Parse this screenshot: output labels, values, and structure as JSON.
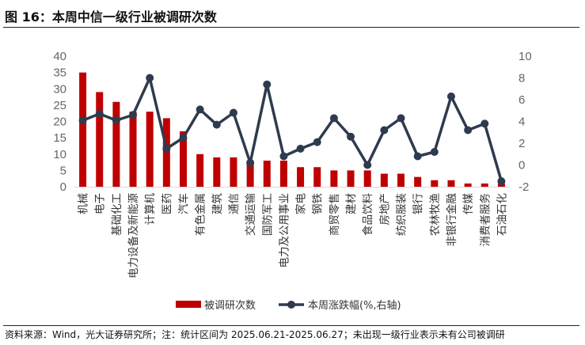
{
  "title": "图 16：本周中信一级行业被调研次数",
  "source": "资料来源：Wind，光大证券研究所；注：统计区间为 2025.06.21-2025.06.27；未出现一级行业表示未有公司被调研",
  "chart_data": {
    "type": "bar+line",
    "categories": [
      "机械",
      "电子",
      "基础化工",
      "电力设备及新能源",
      "计算机",
      "医药",
      "汽车",
      "有色金属",
      "建筑",
      "通信",
      "交通运输",
      "国防军工",
      "电力及公用事业",
      "家电",
      "钢铁",
      "商贸零售",
      "建材",
      "食品饮料",
      "房地产",
      "纺织服装",
      "银行",
      "农林牧渔",
      "非银行金融",
      "传媒",
      "消费者服务",
      "石油石化"
    ],
    "series": [
      {
        "name": "被调研次数",
        "type": "bar",
        "axis": "left",
        "color": "#C00000",
        "values": [
          35,
          29,
          26,
          23,
          23,
          21,
          17,
          10,
          9,
          9,
          8,
          8,
          8,
          6,
          6,
          5,
          5,
          5,
          4,
          4,
          3,
          2,
          2,
          1,
          1,
          1
        ]
      },
      {
        "name": "本周涨跌幅(%,右轴)",
        "type": "line",
        "axis": "right",
        "color": "#2E3B4E",
        "values": [
          4.1,
          4.7,
          4.1,
          4.6,
          8.0,
          1.5,
          2.5,
          5.1,
          3.7,
          4.8,
          0.2,
          7.4,
          0.8,
          1.5,
          2.1,
          4.3,
          2.6,
          0.0,
          3.2,
          4.3,
          0.8,
          1.2,
          6.3,
          3.2,
          3.8,
          -1.5
        ]
      }
    ],
    "left_axis": {
      "ylim": [
        0,
        40
      ],
      "ticks": [
        0,
        5,
        10,
        15,
        20,
        25,
        30,
        35,
        40
      ]
    },
    "right_axis": {
      "ylim": [
        -2,
        10
      ],
      "ticks": [
        -2,
        0,
        2,
        4,
        6,
        8,
        10
      ]
    },
    "legend": "bottom",
    "grid": false
  }
}
